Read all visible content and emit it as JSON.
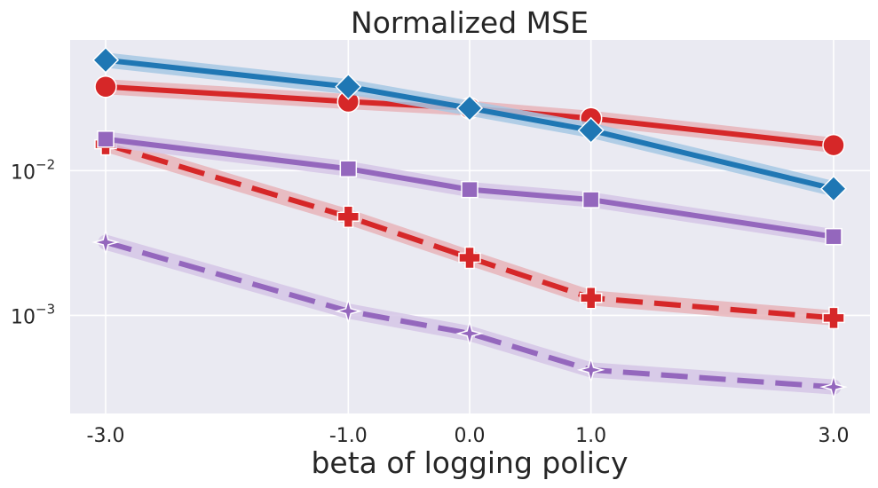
{
  "chart_data": {
    "type": "line",
    "title": "Normalized MSE",
    "xlabel": "beta of logging policy",
    "ylabel": "",
    "x": [
      -3.0,
      -1.0,
      0.0,
      1.0,
      3.0
    ],
    "x_tick_labels": [
      "-3.0",
      "-1.0",
      "0.0",
      "1.0",
      "3.0"
    ],
    "y_scale": "log",
    "ylim": [
      0.00021,
      0.08
    ],
    "y_tick_labels": [
      {
        "value": 0.01,
        "base": "10",
        "exp": "−2"
      },
      {
        "value": 0.001,
        "base": "10",
        "exp": "−3"
      }
    ],
    "grid": true,
    "legend": "none",
    "series": [
      {
        "color": "#1f77b4",
        "band_color": "#a6c8e4",
        "style": "solid",
        "marker": "diamond",
        "values": [
          0.058,
          0.038,
          0.027,
          0.019,
          0.0075
        ]
      },
      {
        "color": "#d62728",
        "band_color": "#e8b4ba",
        "style": "solid",
        "marker": "circle",
        "values": [
          0.038,
          0.03,
          0.027,
          0.023,
          0.015
        ]
      },
      {
        "color": "#9467bd",
        "band_color": "#d5c6e6",
        "style": "solid",
        "marker": "square",
        "values": [
          0.0165,
          0.0103,
          0.0074,
          0.0063,
          0.0035
        ]
      },
      {
        "color": "#d62728",
        "band_color": "#e8b4ba",
        "style": "dashed",
        "marker": "plus",
        "values": [
          0.0152,
          0.0048,
          0.0025,
          0.00132,
          0.00096
        ]
      },
      {
        "color": "#9467bd",
        "band_color": "#d5c6e6",
        "style": "dashed",
        "marker": "star",
        "values": [
          0.0032,
          0.00107,
          0.00075,
          0.00042,
          0.00032
        ]
      }
    ]
  }
}
